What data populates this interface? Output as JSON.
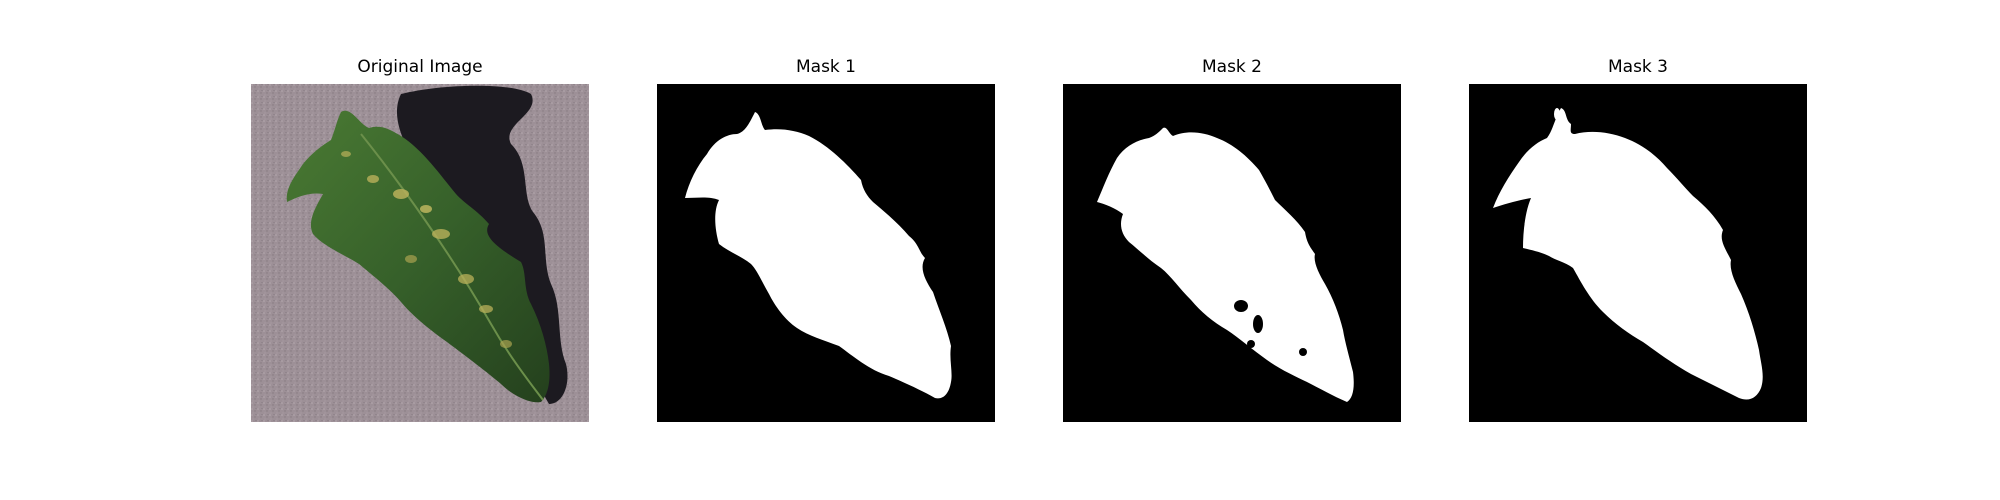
{
  "figure": {
    "panels": [
      {
        "title": "Original Image",
        "content": "photo of a green tomato leaf with yellow-spotted lesions on grey gravel ground, casting a dark shadow"
      },
      {
        "title": "Mask 1",
        "content": "binary segmentation mask: white leaf silhouette on black background"
      },
      {
        "title": "Mask 2",
        "content": "binary segmentation mask: white leaf silhouette with small holes on black background"
      },
      {
        "title": "Mask 3",
        "content": "binary segmentation mask: white leaf silhouette on black background"
      }
    ]
  },
  "colors": {
    "background": "#ffffff",
    "mask_background": "#000000",
    "mask_foreground": "#ffffff",
    "leaf_dark": "#2e4f24",
    "leaf_light": "#5d8a3f",
    "lesion": "#b9b05a",
    "ground": "#9d9097",
    "shadow": "#1c1a20"
  }
}
